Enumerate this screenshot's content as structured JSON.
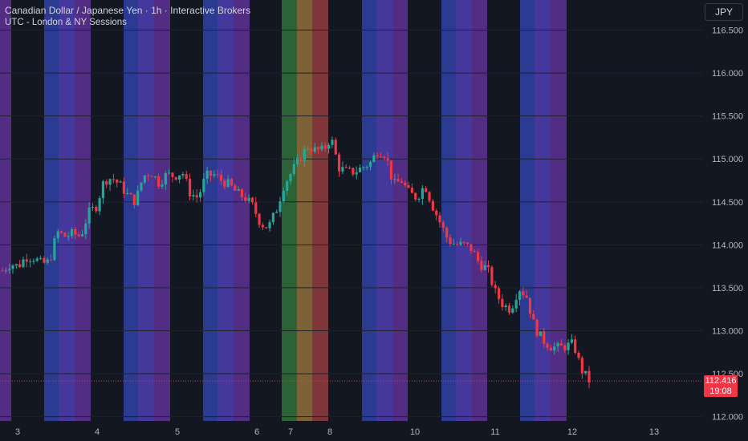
{
  "header": {
    "title": "Canadian Dollar / Japanese Yen · 1h · Interactive Brokers",
    "indicator": "UTC - London & NY Sessions"
  },
  "currency_button": "JPY",
  "price_axis": [
    "116.500",
    "116.000",
    "115.500",
    "115.000",
    "114.500",
    "114.000",
    "113.500",
    "113.000",
    "112.500",
    "112.000"
  ],
  "time_axis": [
    "3",
    "4",
    "5",
    "6",
    "7",
    "8",
    "10",
    "11",
    "12",
    "13"
  ],
  "last_price": {
    "value": "112.416",
    "countdown": "19:08"
  },
  "colors": {
    "background": "#131722",
    "grid": "#1e222d",
    "up": "#26a69a",
    "down": "#f23645",
    "london": "#2f3f9e",
    "overlap": "#4b3ba8",
    "ny": "#5b2f8f",
    "special_london": "#2f6b3a",
    "special_overlap": "#8b6a3a",
    "special_ny": "#8c3a3e"
  },
  "chart_data": {
    "type": "candlestick",
    "symbol": "CADJPY",
    "interval": "1h",
    "ylim": [
      111.95,
      116.85
    ],
    "x_ticks": [
      "3",
      "4",
      "5",
      "6",
      "7",
      "8",
      "10",
      "11",
      "12",
      "13"
    ],
    "close_path": [
      113.7,
      113.78,
      113.75,
      113.86,
      113.85,
      113.78,
      113.8,
      114.15,
      114.1,
      114.13,
      114.1,
      114.37,
      114.45,
      114.75,
      114.78,
      114.7,
      114.58,
      114.5,
      114.8,
      114.85,
      114.72,
      114.82,
      114.8,
      114.85,
      114.6,
      114.55,
      114.8,
      114.82,
      114.75,
      114.7,
      114.6,
      114.55,
      114.45,
      114.25,
      114.2,
      114.4,
      114.7,
      114.85,
      115.0,
      115.15,
      115.1,
      115.1,
      115.25,
      114.9,
      114.85,
      114.85,
      114.9,
      114.95,
      115.1,
      115.05,
      114.7,
      114.75,
      114.6,
      114.55,
      114.7,
      114.45,
      114.25,
      114.05,
      114.0,
      114.0,
      113.95,
      113.78,
      113.72,
      113.45,
      113.3,
      113.25,
      113.5,
      113.4,
      113.05,
      112.9,
      112.82,
      112.8,
      112.82,
      112.85,
      112.55,
      112.42
    ],
    "last_price": 112.416,
    "sessions": [
      "London",
      "London/NY overlap",
      "New York"
    ]
  }
}
